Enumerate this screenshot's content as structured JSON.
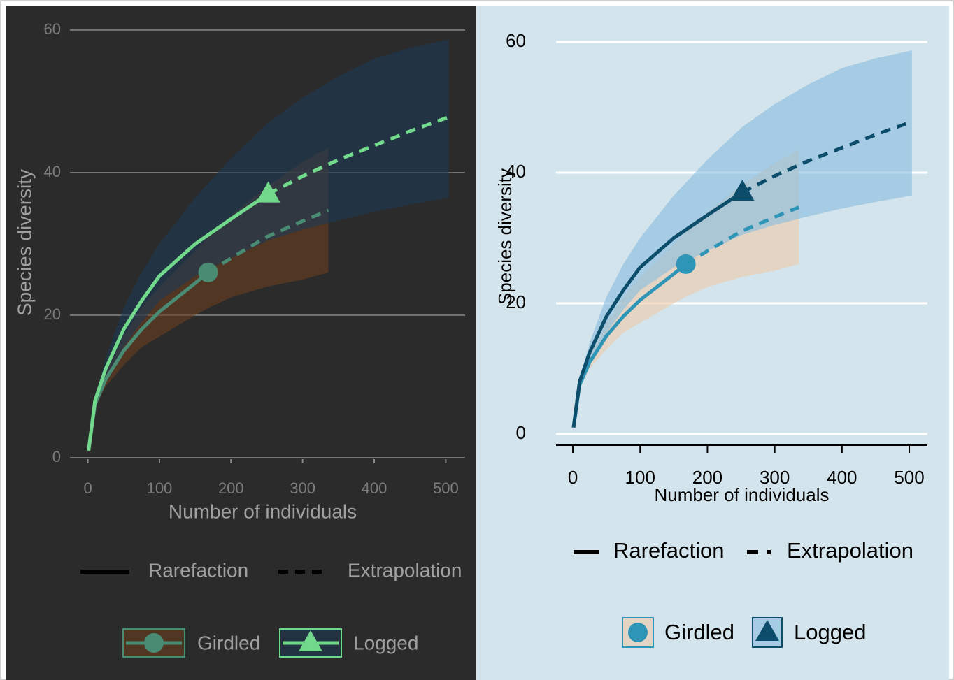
{
  "chart_data": [
    {
      "type": "line",
      "x_label": "Number of individuals",
      "y_label": "Species diversity",
      "background": "#2b2b2b",
      "grid_color": "#8a8a8a",
      "text_color": "#7c7c7c",
      "label_color": "#a0a0a0",
      "grid": true,
      "xlim": [
        -25,
        527
      ],
      "ylim": [
        0,
        60
      ],
      "xticks": [
        0,
        100,
        200,
        300,
        400,
        500
      ],
      "yticks": [
        0,
        20,
        40,
        60
      ],
      "linetype_legend": [
        "Rarefaction",
        "Extrapolation"
      ],
      "series": [
        {
          "name": "Girdled",
          "color": "#4a8b73",
          "band_color": "#6b3d1f",
          "x": [
            1,
            10,
            25,
            50,
            75,
            100,
            125,
            150,
            168,
            200,
            250,
            300,
            336
          ],
          "values": [
            1,
            7.5,
            11,
            15,
            18,
            20.5,
            22.5,
            24.5,
            26,
            28,
            31,
            33.2,
            34.7
          ],
          "lower": [
            1,
            7,
            10,
            13,
            15.5,
            17,
            18.5,
            20,
            21,
            22.5,
            24,
            25,
            26
          ],
          "upper": [
            1,
            8,
            12,
            17,
            21,
            24,
            26.5,
            29,
            31,
            34,
            38,
            41.5,
            43.5
          ],
          "observed": [
            168,
            26
          ],
          "marker": "circle"
        },
        {
          "name": "Logged",
          "color": "#72d98c",
          "band_color": "#1d3a55",
          "x": [
            1,
            10,
            25,
            50,
            75,
            100,
            150,
            200,
            252,
            300,
            350,
            400,
            450,
            504
          ],
          "values": [
            1,
            8,
            12.5,
            18,
            22,
            25.5,
            30,
            33.5,
            37,
            39.5,
            41.8,
            43.8,
            45.8,
            47.8
          ],
          "lower": [
            1,
            7.5,
            11,
            15.5,
            19,
            22,
            25.5,
            28,
            30.5,
            32,
            33.3,
            34.5,
            35.5,
            36.5
          ],
          "upper": [
            1,
            8.5,
            14,
            21,
            26,
            30,
            36.5,
            42,
            47,
            50.5,
            53.5,
            56,
            57.5,
            58.7
          ],
          "observed": [
            252,
            37
          ],
          "marker": "triangle"
        }
      ]
    },
    {
      "type": "line",
      "x_label": "Number of individuals",
      "y_label": "Species diversity",
      "background": "#d4e4ec",
      "grid_color": "#ffffff",
      "text_color": "#000000",
      "label_color": "#000000",
      "grid": true,
      "xlim": [
        -25,
        527
      ],
      "ylim": [
        0,
        60
      ],
      "xticks": [
        0,
        100,
        200,
        300,
        400,
        500
      ],
      "yticks": [
        0,
        20,
        40,
        60
      ],
      "linetype_legend": [
        "Rarefaction",
        "Extrapolation"
      ],
      "series": [
        {
          "name": "Girdled",
          "color": "#2f95b7",
          "band_color": "#efc9a8",
          "x": [
            1,
            10,
            25,
            50,
            75,
            100,
            125,
            150,
            168,
            200,
            250,
            300,
            336
          ],
          "values": [
            1,
            7.5,
            11,
            15,
            18,
            20.5,
            22.5,
            24.5,
            26,
            28,
            31,
            33.2,
            34.7
          ],
          "lower": [
            1,
            7,
            10,
            13,
            15.5,
            17,
            18.5,
            20,
            21,
            22.5,
            24,
            25,
            26
          ],
          "upper": [
            1,
            8,
            12,
            17,
            21,
            24,
            26.5,
            29,
            31,
            34,
            38,
            41.5,
            43.5
          ],
          "observed": [
            168,
            26
          ],
          "marker": "circle"
        },
        {
          "name": "Logged",
          "color": "#0b4d6a",
          "band_color": "#86bde0",
          "x": [
            1,
            10,
            25,
            50,
            75,
            100,
            150,
            200,
            252,
            300,
            350,
            400,
            450,
            504
          ],
          "values": [
            1,
            8,
            12.5,
            18,
            22,
            25.5,
            30,
            33.5,
            37,
            39.5,
            41.8,
            43.8,
            45.8,
            47.8
          ],
          "lower": [
            1,
            7.5,
            11,
            15.5,
            19,
            22,
            25.5,
            28,
            30.5,
            32,
            33.3,
            34.5,
            35.5,
            36.5
          ],
          "upper": [
            1,
            8.5,
            14,
            21,
            26,
            30,
            36.5,
            42,
            47,
            50.5,
            53.5,
            56,
            57.5,
            58.7
          ],
          "observed": [
            252,
            37
          ],
          "marker": "triangle"
        }
      ]
    }
  ]
}
